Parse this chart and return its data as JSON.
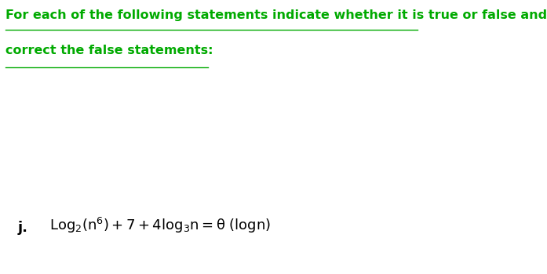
{
  "title_line1": "For each of the following statements indicate whether it is true or false and",
  "title_line2": "correct the false statements:",
  "math_label": "j.",
  "math_text": "$\\mathrm{Log_2(n^6) + 7 + 4log_3n = \\theta\\ (logn)}$",
  "title_color": "#00aa00",
  "math_color": "#000000",
  "background_color": "#ffffff",
  "title_fontsize": 11.5,
  "math_fontsize": 13
}
